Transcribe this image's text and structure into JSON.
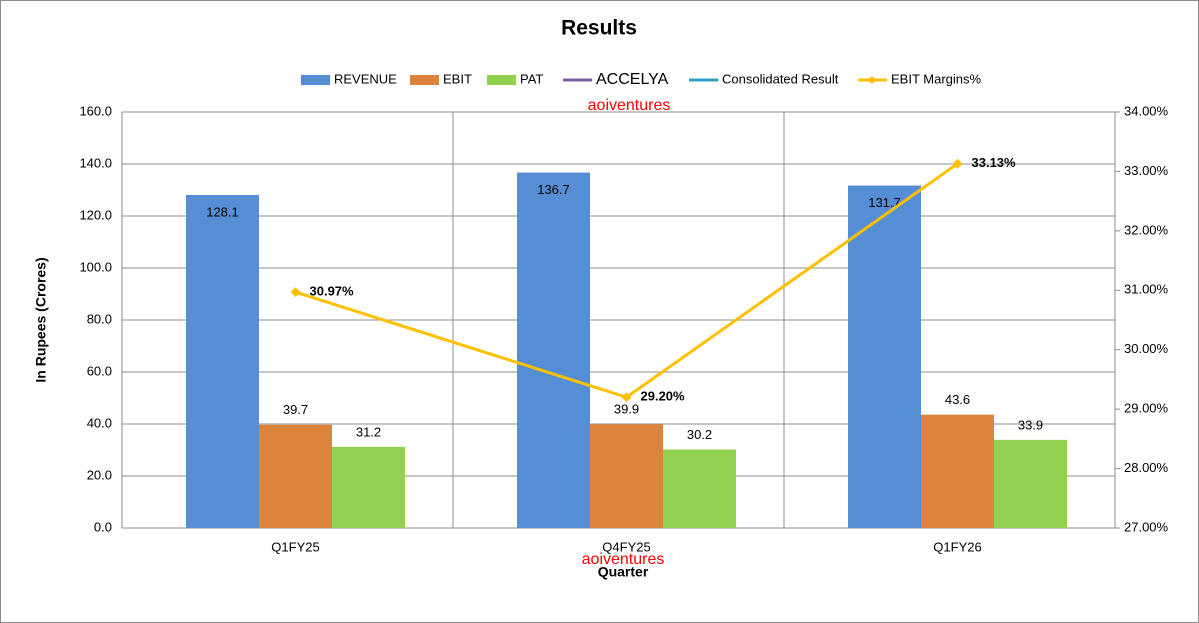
{
  "chart_data": {
    "type": "bar",
    "title": "Results",
    "x_label": "Quarter",
    "y_label": "In Rupees (Crores)",
    "watermarks": [
      "aoiventures",
      "aoiventures"
    ],
    "categories": [
      "Q1FY25",
      "Q4FY25",
      "Q1FY26"
    ],
    "series": [
      {
        "name": "REVENUE",
        "color": "#558ed5",
        "type": "bar",
        "values": [
          128.1,
          136.7,
          131.7
        ]
      },
      {
        "name": "EBIT",
        "color": "#dd843c",
        "type": "bar",
        "values": [
          39.7,
          39.9,
          43.6
        ]
      },
      {
        "name": "PAT",
        "color": "#92d050",
        "type": "bar",
        "values": [
          31.2,
          30.2,
          33.9
        ]
      },
      {
        "name": "ACCELYA",
        "color": "#7f5fa8",
        "type": "line",
        "values": [
          null,
          null,
          null
        ]
      },
      {
        "name": "Consolidated Result",
        "color": "#31a0c0",
        "type": "line",
        "values": [
          null,
          null,
          null
        ]
      },
      {
        "name": "EBIT Margins%",
        "color": "#ffc000",
        "type": "line",
        "axis": "y2",
        "values": [
          30.97,
          29.2,
          33.13
        ],
        "value_labels": [
          "30.97%",
          "29.20%",
          "33.13%"
        ]
      }
    ],
    "ylim": [
      0,
      160
    ],
    "yticks": [
      {
        "value": 0,
        "label": "0.0"
      },
      {
        "value": 20,
        "label": "20.0"
      },
      {
        "value": 40,
        "label": "40.0"
      },
      {
        "value": 60,
        "label": "60.0"
      },
      {
        "value": 80,
        "label": "80.0"
      },
      {
        "value": 100,
        "label": "100.0"
      },
      {
        "value": 120,
        "label": "120.0"
      },
      {
        "value": 140,
        "label": "140.0"
      },
      {
        "value": 160,
        "label": "160.0"
      }
    ],
    "y2lim": [
      27,
      34
    ],
    "y2ticks": [
      {
        "value": 27,
        "label": "27.00%"
      },
      {
        "value": 28,
        "label": "28.00%"
      },
      {
        "value": 29,
        "label": "29.00%"
      },
      {
        "value": 30,
        "label": "30.00%"
      },
      {
        "value": 31,
        "label": "31.00%"
      },
      {
        "value": 32,
        "label": "32.00%"
      },
      {
        "value": 33,
        "label": "33.00%"
      },
      {
        "value": 34,
        "label": "34.00%"
      }
    ],
    "grid": true
  }
}
